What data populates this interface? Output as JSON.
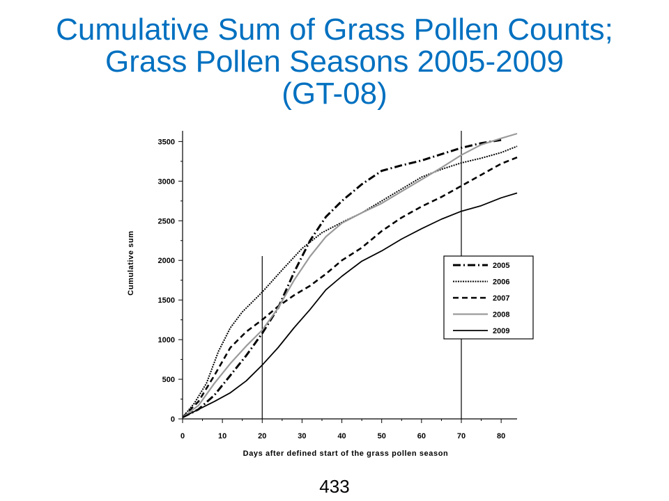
{
  "slide": {
    "title_lines": [
      "Cumulative Sum of Grass Pollen Counts;",
      "Grass Pollen Seasons 2005-2009",
      "(GT-08)"
    ],
    "page_number": "433"
  },
  "chart_data": {
    "type": "line",
    "title": "",
    "xlabel": "Days after defined start of the grass pollen season",
    "ylabel": "Cumulative sum",
    "xlim": [
      0,
      84
    ],
    "ylim": [
      0,
      3600
    ],
    "xticks": [
      0,
      10,
      20,
      30,
      40,
      50,
      60,
      70,
      80
    ],
    "yticks": [
      0,
      500,
      1000,
      1500,
      2000,
      2500,
      3000,
      3500
    ],
    "reference_lines_x": [
      20,
      70
    ],
    "grid": false,
    "legend_position": "right",
    "series": [
      {
        "name": "2005",
        "style": "dash-dot",
        "color": "#000000",
        "x": [
          0,
          4,
          8,
          12,
          16,
          20,
          24,
          28,
          32,
          36,
          40,
          45,
          50,
          55,
          60,
          65,
          70,
          75,
          80
        ],
        "y": [
          20,
          120,
          300,
          550,
          800,
          1080,
          1400,
          1850,
          2250,
          2550,
          2750,
          2960,
          3130,
          3200,
          3260,
          3340,
          3420,
          3480,
          3520
        ]
      },
      {
        "name": "2006",
        "style": "dotted",
        "color": "#000000",
        "x": [
          0,
          3,
          6,
          9,
          12,
          15,
          20,
          25,
          30,
          35,
          40,
          45,
          50,
          55,
          60,
          65,
          70,
          75,
          80,
          84
        ],
        "y": [
          20,
          200,
          450,
          850,
          1150,
          1350,
          1600,
          1880,
          2150,
          2350,
          2480,
          2600,
          2750,
          2900,
          3050,
          3150,
          3230,
          3290,
          3360,
          3440
        ]
      },
      {
        "name": "2007",
        "style": "dashed",
        "color": "#000000",
        "x": [
          0,
          4,
          8,
          12,
          16,
          20,
          24,
          28,
          32,
          36,
          40,
          45,
          50,
          55,
          60,
          65,
          70,
          75,
          80,
          84
        ],
        "y": [
          20,
          220,
          550,
          900,
          1100,
          1250,
          1420,
          1560,
          1680,
          1830,
          2000,
          2160,
          2370,
          2540,
          2680,
          2800,
          2940,
          3080,
          3220,
          3300
        ]
      },
      {
        "name": "2008",
        "style": "solid",
        "color": "#9a9a9a",
        "x": [
          0,
          4,
          8,
          12,
          16,
          20,
          24,
          28,
          32,
          36,
          40,
          45,
          50,
          55,
          60,
          65,
          70,
          75,
          80,
          84
        ],
        "y": [
          20,
          170,
          450,
          700,
          920,
          1120,
          1400,
          1750,
          2050,
          2300,
          2470,
          2600,
          2720,
          2870,
          3020,
          3170,
          3330,
          3460,
          3540,
          3600
        ]
      },
      {
        "name": "2009",
        "style": "solid",
        "color": "#000000",
        "x": [
          0,
          4,
          8,
          12,
          16,
          20,
          24,
          28,
          32,
          36,
          40,
          45,
          50,
          55,
          60,
          65,
          70,
          75,
          80,
          84
        ],
        "y": [
          20,
          120,
          220,
          330,
          480,
          680,
          900,
          1150,
          1380,
          1630,
          1800,
          1990,
          2120,
          2270,
          2400,
          2520,
          2620,
          2690,
          2790,
          2850
        ]
      }
    ]
  }
}
